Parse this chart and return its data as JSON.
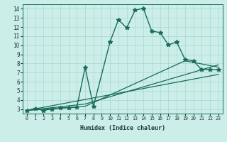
{
  "xlabel": "Humidex (Indice chaleur)",
  "ylabel": "",
  "background_color": "#cceee8",
  "grid_color": "#a8d8d0",
  "line_color": "#1a6b5a",
  "xlim": [
    -0.5,
    23.5
  ],
  "ylim": [
    2.5,
    14.5
  ],
  "xticks": [
    0,
    1,
    2,
    3,
    4,
    5,
    6,
    7,
    8,
    9,
    10,
    11,
    12,
    13,
    14,
    15,
    16,
    17,
    18,
    19,
    20,
    21,
    22,
    23
  ],
  "yticks": [
    3,
    4,
    5,
    6,
    7,
    8,
    9,
    10,
    11,
    12,
    13,
    14
  ],
  "series": [
    {
      "x": [
        0,
        1,
        2,
        3,
        4,
        5,
        6,
        7,
        8,
        10,
        11,
        12,
        13,
        14,
        15,
        16,
        17,
        18,
        19,
        20,
        21,
        22,
        23
      ],
      "y": [
        2.85,
        3.05,
        2.85,
        3.0,
        3.1,
        3.15,
        3.2,
        7.55,
        3.3,
        10.4,
        12.8,
        11.9,
        13.85,
        14.05,
        11.55,
        11.4,
        10.05,
        10.35,
        8.45,
        8.3,
        7.3,
        7.35,
        7.3
      ],
      "marker": "*",
      "markersize": 4,
      "linewidth": 1.0
    },
    {
      "x": [
        0,
        7,
        19,
        23
      ],
      "y": [
        2.85,
        3.3,
        8.3,
        7.6
      ],
      "marker": null,
      "markersize": 0,
      "linewidth": 0.9
    },
    {
      "x": [
        0,
        7,
        23
      ],
      "y": [
        2.85,
        3.55,
        7.85
      ],
      "marker": null,
      "markersize": 0,
      "linewidth": 0.9
    },
    {
      "x": [
        0,
        23
      ],
      "y": [
        2.85,
        6.8
      ],
      "marker": null,
      "markersize": 0,
      "linewidth": 0.9
    }
  ]
}
